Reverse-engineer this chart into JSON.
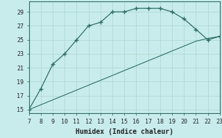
{
  "title": "",
  "xlabel": "Humidex (Indice chaleur)",
  "background_color": "#c8ecec",
  "grid_color": "#b0d8d0",
  "line_color": "#2a6b5e",
  "curve1_x": [
    7,
    8,
    9,
    10,
    11,
    12,
    13,
    14,
    15,
    16,
    17,
    18,
    19,
    20,
    21,
    22,
    23
  ],
  "curve1_y": [
    15.0,
    18.0,
    21.5,
    23.0,
    25.0,
    27.0,
    27.5,
    29.0,
    29.0,
    29.5,
    29.5,
    29.5,
    29.0,
    28.0,
    26.5,
    25.0,
    25.5
  ],
  "curve2_x": [
    7,
    8,
    9,
    10,
    11,
    12,
    13,
    14,
    15,
    16,
    17,
    18,
    19,
    20,
    21,
    22,
    23
  ],
  "curve2_y": [
    15.0,
    15.7,
    16.4,
    17.1,
    17.8,
    18.5,
    19.2,
    19.9,
    20.6,
    21.3,
    22.0,
    22.7,
    23.4,
    24.1,
    24.8,
    25.2,
    25.5
  ],
  "xlim": [
    7,
    23
  ],
  "ylim": [
    14.5,
    30.5
  ],
  "xticks": [
    7,
    8,
    9,
    10,
    11,
    12,
    13,
    14,
    15,
    16,
    17,
    18,
    19,
    20,
    21,
    22,
    23
  ],
  "yticks": [
    15,
    17,
    19,
    21,
    23,
    25,
    27,
    29
  ],
  "label_fontsize": 7,
  "tick_fontsize": 6,
  "marker": "+",
  "markersize": 4,
  "markeredgewidth": 1.0,
  "linewidth": 0.9,
  "linewidth2": 0.8
}
